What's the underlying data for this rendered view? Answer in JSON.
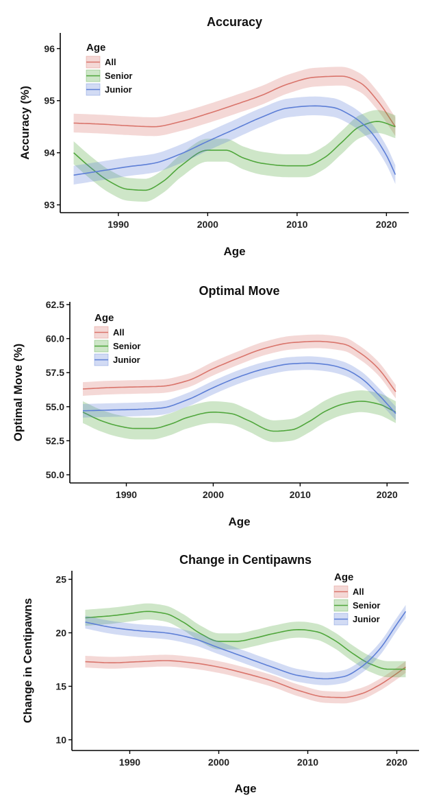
{
  "chart_data": [
    {
      "type": "line",
      "title": "Accuracy",
      "xlabel": "Age",
      "ylabel": "Accuracy (%)",
      "xlim": [
        1983.5,
        2022.5
      ],
      "ylim": [
        92.85,
        96.3
      ],
      "xticks": [
        1990,
        2000,
        2010,
        2020
      ],
      "yticks": [
        93,
        94,
        95,
        96
      ],
      "grid": false,
      "legend": {
        "title": "Age",
        "position": "top-left"
      },
      "series": [
        {
          "name": "All",
          "color": "#d9746b",
          "band": 0.18,
          "x": [
            1985,
            1988,
            1991,
            1994,
            1997,
            2000,
            2003,
            2006,
            2009,
            2012,
            2015,
            2017,
            2019,
            2021
          ],
          "y": [
            94.57,
            94.55,
            94.52,
            94.5,
            94.6,
            94.75,
            94.92,
            95.1,
            95.32,
            95.45,
            95.47,
            95.35,
            95.0,
            94.5
          ]
        },
        {
          "name": "Senior",
          "color": "#4fa63b",
          "band": 0.22,
          "x": [
            1985,
            1987,
            1989,
            1991,
            1993,
            1995,
            1997,
            2000,
            2002,
            2004,
            2006,
            2009,
            2011,
            2013,
            2015,
            2017,
            2019,
            2021
          ],
          "y": [
            94.0,
            93.7,
            93.45,
            93.3,
            93.28,
            93.45,
            93.75,
            94.05,
            94.05,
            93.9,
            93.8,
            93.75,
            93.75,
            93.9,
            94.2,
            94.5,
            94.6,
            94.5
          ]
        },
        {
          "name": "Junior",
          "color": "#5c7ed6",
          "band": 0.18,
          "x": [
            1985,
            1988,
            1991,
            1994,
            1997,
            2000,
            2003,
            2006,
            2009,
            2012,
            2014,
            2016,
            2018,
            2020,
            2021
          ],
          "y": [
            93.57,
            93.65,
            93.73,
            93.8,
            93.98,
            94.22,
            94.45,
            94.68,
            94.86,
            94.9,
            94.87,
            94.72,
            94.45,
            93.95,
            93.58
          ]
        }
      ]
    },
    {
      "type": "line",
      "title": "Optimal Move",
      "xlabel": "Age",
      "ylabel": "Optimal Move (%)",
      "xlim": [
        1983.5,
        2022.5
      ],
      "ylim": [
        49.4,
        62.7
      ],
      "xticks": [
        1990,
        2000,
        2010,
        2020
      ],
      "yticks": [
        50.0,
        52.5,
        55.0,
        57.5,
        60.0,
        62.5
      ],
      "ytick_labels": [
        "50.0",
        "52.5",
        "55.0",
        "57.5",
        "60.0",
        "62.5"
      ],
      "grid": false,
      "legend": {
        "title": "Age",
        "position": "top-left"
      },
      "series": [
        {
          "name": "All",
          "color": "#d9746b",
          "band": 0.5,
          "x": [
            1985,
            1988,
            1991,
            1994,
            1997,
            2000,
            2003,
            2006,
            2009,
            2012,
            2015,
            2017,
            2019,
            2021
          ],
          "y": [
            56.3,
            56.4,
            56.45,
            56.5,
            56.9,
            57.8,
            58.6,
            59.3,
            59.7,
            59.8,
            59.6,
            58.9,
            57.8,
            56.1
          ]
        },
        {
          "name": "Senior",
          "color": "#4fa63b",
          "band": 0.8,
          "x": [
            1985,
            1987,
            1989,
            1991,
            1993,
            1995,
            1997,
            2000,
            2002,
            2004,
            2007,
            2009,
            2011,
            2013,
            2015,
            2017,
            2019,
            2021
          ],
          "y": [
            54.6,
            54.0,
            53.6,
            53.4,
            53.4,
            53.7,
            54.2,
            54.6,
            54.5,
            54.0,
            53.2,
            53.3,
            53.9,
            54.7,
            55.2,
            55.4,
            55.2,
            54.6
          ]
        },
        {
          "name": "Junior",
          "color": "#5c7ed6",
          "band": 0.5,
          "x": [
            1985,
            1988,
            1991,
            1994,
            1997,
            2000,
            2003,
            2006,
            2009,
            2011,
            2013,
            2015,
            2017,
            2019,
            2021
          ],
          "y": [
            54.7,
            54.75,
            54.8,
            54.9,
            55.5,
            56.4,
            57.2,
            57.8,
            58.15,
            58.2,
            58.1,
            57.8,
            57.1,
            55.9,
            54.5
          ]
        }
      ]
    },
    {
      "type": "line",
      "title": "Change in Centipawns",
      "xlabel": "Age",
      "ylabel": "Change in Centipawns",
      "xlim": [
        1983.5,
        2022.5
      ],
      "ylim": [
        9.0,
        25.8
      ],
      "xticks": [
        1990,
        2000,
        2010,
        2020
      ],
      "yticks": [
        10,
        15,
        20,
        25
      ],
      "grid": false,
      "legend": {
        "title": "Age",
        "position": "top-right"
      },
      "series": [
        {
          "name": "All",
          "color": "#d9746b",
          "band": 0.55,
          "x": [
            1985,
            1988,
            1991,
            1994,
            1997,
            2000,
            2003,
            2006,
            2009,
            2012,
            2014,
            2016,
            2018,
            2020,
            2021
          ],
          "y": [
            17.3,
            17.2,
            17.3,
            17.4,
            17.2,
            16.8,
            16.2,
            15.5,
            14.6,
            14.0,
            13.95,
            14.3,
            15.1,
            16.2,
            16.8
          ]
        },
        {
          "name": "Senior",
          "color": "#4fa63b",
          "band": 0.75,
          "x": [
            1985,
            1988,
            1990,
            1992,
            1994,
            1996,
            1998,
            2000,
            2002,
            2004,
            2006,
            2009,
            2011,
            2013,
            2015,
            2017,
            2019,
            2021
          ],
          "y": [
            21.4,
            21.6,
            21.8,
            22.0,
            21.8,
            21.0,
            19.9,
            19.2,
            19.2,
            19.5,
            19.9,
            20.3,
            20.1,
            19.3,
            18.1,
            17.1,
            16.6,
            16.6
          ]
        },
        {
          "name": "Junior",
          "color": "#5c7ed6",
          "band": 0.6,
          "x": [
            1985,
            1988,
            1991,
            1994,
            1997,
            2000,
            2003,
            2006,
            2009,
            2012,
            2014,
            2016,
            2018,
            2020,
            2021
          ],
          "y": [
            21.0,
            20.5,
            20.2,
            20.0,
            19.5,
            18.6,
            17.7,
            16.8,
            16.0,
            15.7,
            15.9,
            16.8,
            18.4,
            20.8,
            22.0
          ]
        }
      ]
    }
  ]
}
